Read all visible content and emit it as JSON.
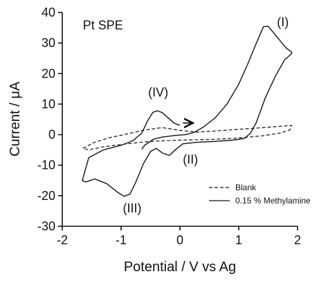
{
  "chart_data": {
    "type": "line",
    "title": "",
    "xlabel": "Potential / V vs Ag",
    "ylabel": "Current / μA",
    "xlim": [
      -2,
      2
    ],
    "ylim": [
      -30,
      40
    ],
    "xticks": [
      -2,
      -1,
      0,
      1,
      2
    ],
    "yticks": [
      -30,
      -20,
      -10,
      0,
      10,
      20,
      30,
      40
    ],
    "grid": false,
    "legend_position": "bottom-right",
    "annotations": [
      {
        "text": "Pt SPE",
        "x": -1.65,
        "y": 34.5
      },
      {
        "text": "(I)",
        "x": 1.65,
        "y": 35.5
      },
      {
        "text": "(II)",
        "x": 0.05,
        "y": -9.5
      },
      {
        "text": "(III)",
        "x": -0.97,
        "y": -25.5
      },
      {
        "text": "(IV)",
        "x": -0.54,
        "y": 12.5
      }
    ],
    "arrow": {
      "from": [
        0.05,
        3.8
      ],
      "to": [
        0.22,
        3.8
      ]
    },
    "series": [
      {
        "name": "Blank",
        "style": "dashed",
        "color": "#111111",
        "points": [
          [
            -1.65,
            -4.5
          ],
          [
            -1.45,
            -2.5
          ],
          [
            -1.2,
            -1.0
          ],
          [
            -0.9,
            0.2
          ],
          [
            -0.6,
            1.5
          ],
          [
            -0.3,
            2.3
          ],
          [
            0.0,
            1.4
          ],
          [
            0.3,
            0.8
          ],
          [
            0.6,
            1.2
          ],
          [
            0.9,
            1.6
          ],
          [
            1.2,
            2.0
          ],
          [
            1.5,
            2.4
          ],
          [
            1.75,
            2.8
          ],
          [
            1.9,
            3.0
          ],
          [
            1.87,
            1.5
          ],
          [
            1.7,
            0.5
          ],
          [
            1.4,
            -0.4
          ],
          [
            1.0,
            -1.1
          ],
          [
            0.5,
            -1.6
          ],
          [
            0.0,
            -1.8
          ],
          [
            -0.5,
            -2.2
          ],
          [
            -0.9,
            -3.0
          ],
          [
            -1.3,
            -4.0
          ],
          [
            -1.55,
            -5.0
          ],
          [
            -1.65,
            -4.5
          ]
        ]
      },
      {
        "name": "0.15 % Methylamine",
        "style": "solid",
        "color": "#111111",
        "points": [
          [
            0.0,
            3.0
          ],
          [
            -0.1,
            3.8
          ],
          [
            -0.2,
            5.5
          ],
          [
            -0.3,
            7.2
          ],
          [
            -0.38,
            7.8
          ],
          [
            -0.46,
            7.3
          ],
          [
            -0.55,
            4.5
          ],
          [
            -0.65,
            0.5
          ],
          [
            -0.8,
            -2.0
          ],
          [
            -1.0,
            -3.5
          ],
          [
            -1.3,
            -5.0
          ],
          [
            -1.55,
            -7.5
          ],
          [
            -1.66,
            -15.0
          ],
          [
            -1.6,
            -15.5
          ],
          [
            -1.45,
            -14.5
          ],
          [
            -1.25,
            -16.0
          ],
          [
            -1.05,
            -19.0
          ],
          [
            -0.95,
            -20.2
          ],
          [
            -0.85,
            -19.5
          ],
          [
            -0.75,
            -15.5
          ],
          [
            -0.62,
            -9.5
          ],
          [
            -0.5,
            -5.5
          ],
          [
            -0.4,
            -4.5
          ],
          [
            -0.3,
            -6.0
          ],
          [
            -0.18,
            -6.8
          ],
          [
            -0.05,
            -4.5
          ],
          [
            0.05,
            -3.0
          ],
          [
            0.3,
            -2.5
          ],
          [
            0.6,
            -2.2
          ],
          [
            0.9,
            -1.8
          ],
          [
            1.1,
            -1.2
          ],
          [
            1.2,
            0.5
          ],
          [
            1.3,
            4.0
          ],
          [
            1.45,
            12.0
          ],
          [
            1.62,
            19.0
          ],
          [
            1.78,
            24.5
          ],
          [
            1.9,
            26.5
          ],
          [
            1.9,
            27.0
          ],
          [
            1.8,
            28.5
          ],
          [
            1.65,
            32.0
          ],
          [
            1.5,
            35.5
          ],
          [
            1.42,
            35.3
          ],
          [
            1.3,
            30.0
          ],
          [
            1.15,
            23.0
          ],
          [
            1.0,
            16.5
          ],
          [
            0.8,
            10.0
          ],
          [
            0.6,
            5.5
          ],
          [
            0.4,
            2.5
          ],
          [
            0.25,
            0.8
          ],
          [
            0.1,
            0.0
          ],
          [
            -0.1,
            -0.3
          ],
          [
            -0.3,
            -0.8
          ],
          [
            -0.45,
            -1.5
          ],
          [
            -0.6,
            -3.5
          ],
          [
            -0.65,
            -4.8
          ]
        ]
      }
    ]
  }
}
